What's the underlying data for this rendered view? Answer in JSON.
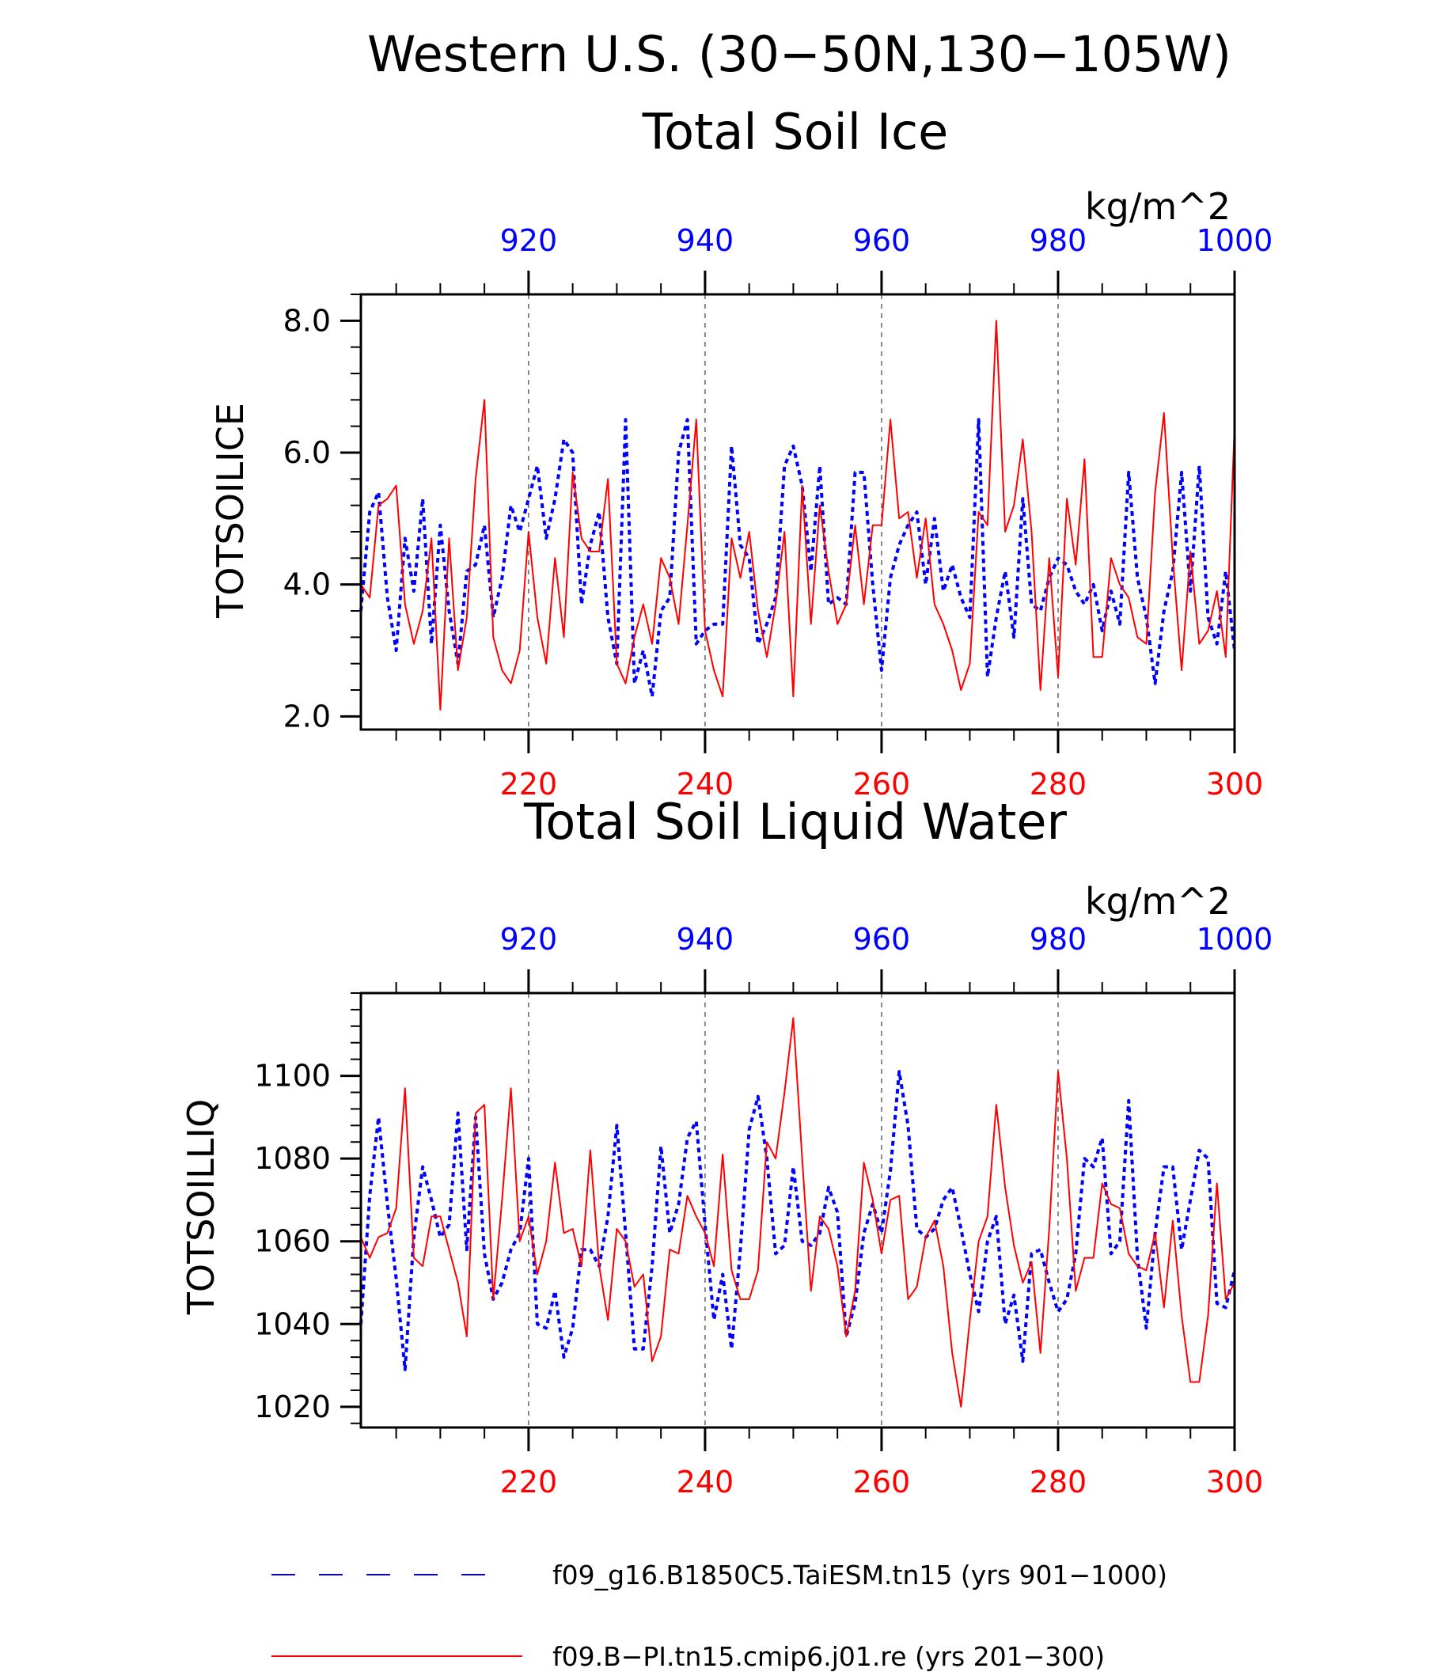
{
  "figure": {
    "title": "Western U.S. (30−50N,130−105W)",
    "colors": {
      "series_a": "#0000ff",
      "series_b": "#ff0000",
      "axis": "#000000",
      "grid": "#6e6e6e"
    }
  },
  "chart_data": [
    {
      "type": "line",
      "title": "Total Soil Ice",
      "ylabel": "TOTSOILICE",
      "unit_label": "kg/m^2",
      "ylim": [
        1.8,
        8.4
      ],
      "yticks": [
        "2.0",
        "4.0",
        "6.0",
        "8.0"
      ],
      "ytick_values": [
        2.0,
        4.0,
        6.0,
        8.0
      ],
      "y_minor_step": 0.4,
      "top_axis": {
        "lim": [
          901,
          1000
        ],
        "ticks": [
          "920",
          "940",
          "960",
          "980",
          "1000"
        ],
        "tick_values": [
          920,
          940,
          960,
          980,
          1000
        ]
      },
      "bottom_axis": {
        "lim": [
          201,
          300
        ],
        "ticks": [
          "220",
          "240",
          "260",
          "280",
          "300"
        ],
        "tick_values": [
          220,
          240,
          260,
          280,
          300
        ]
      },
      "grid": "vertical dashed",
      "series": [
        {
          "style": "dotted",
          "color": "#0000ff",
          "axis": "top",
          "x_start": 901,
          "values": [
            3.6,
            5.1,
            5.4,
            3.8,
            3.0,
            4.7,
            3.9,
            5.3,
            3.1,
            4.9,
            3.6,
            2.8,
            4.2,
            4.3,
            4.9,
            3.5,
            4.1,
            5.2,
            4.8,
            5.3,
            5.8,
            4.7,
            5.3,
            6.2,
            6.0,
            3.7,
            4.6,
            5.1,
            3.5,
            2.8,
            6.5,
            2.5,
            3.0,
            2.3,
            3.6,
            3.8,
            6.0,
            6.5,
            3.1,
            3.3,
            3.4,
            3.4,
            6.1,
            4.6,
            4.4,
            3.1,
            3.4,
            3.8,
            5.8,
            6.1,
            5.5,
            4.2,
            5.8,
            3.7,
            3.8,
            3.7,
            5.7,
            5.7,
            4.0,
            2.7,
            4.1,
            4.6,
            4.9,
            5.1,
            4.0,
            5.0,
            3.9,
            4.3,
            3.8,
            3.5,
            6.5,
            2.6,
            3.5,
            4.2,
            3.2,
            5.3,
            3.7,
            3.6,
            4.1,
            4.4,
            4.3,
            3.9,
            3.7,
            4.0,
            3.3,
            3.9,
            3.4,
            5.7,
            4.1,
            3.5,
            2.5,
            3.6,
            4.2,
            5.7,
            3.9,
            5.8,
            3.5,
            3.1,
            4.2,
            3.0
          ]
        },
        {
          "style": "solid",
          "color": "#ff0000",
          "axis": "bottom",
          "x_start": 201,
          "values": [
            4.0,
            3.8,
            5.2,
            5.3,
            5.5,
            3.7,
            3.1,
            3.6,
            4.7,
            2.1,
            4.7,
            2.7,
            3.5,
            5.6,
            6.8,
            3.2,
            2.7,
            2.5,
            3.0,
            4.8,
            3.5,
            2.8,
            4.4,
            3.2,
            5.7,
            4.7,
            4.5,
            4.5,
            5.6,
            2.8,
            2.5,
            3.2,
            3.7,
            3.1,
            4.4,
            4.1,
            3.4,
            4.9,
            6.5,
            3.3,
            2.7,
            2.3,
            4.7,
            4.1,
            4.8,
            3.6,
            2.9,
            3.7,
            4.8,
            2.3,
            5.5,
            3.4,
            5.2,
            4.2,
            3.4,
            3.7,
            4.9,
            3.7,
            4.9,
            4.9,
            6.5,
            5.0,
            5.1,
            4.1,
            5.0,
            3.7,
            3.4,
            3.0,
            2.4,
            2.8,
            5.1,
            4.9,
            8.0,
            4.8,
            5.2,
            6.2,
            4.8,
            2.4,
            4.4,
            2.6,
            5.3,
            4.3,
            5.9,
            2.9,
            2.9,
            4.4,
            4.0,
            3.8,
            3.2,
            3.1,
            5.4,
            6.6,
            4.4,
            2.7,
            4.5,
            3.1,
            3.3,
            3.9,
            2.9,
            6.4
          ]
        }
      ]
    },
    {
      "type": "line",
      "title": "Total Soil Liquid Water",
      "ylabel": "TOTSOILLIQ",
      "unit_label": "kg/m^2",
      "ylim": [
        1015,
        1120
      ],
      "yticks": [
        "1020",
        "1040",
        "1060",
        "1080",
        "1100"
      ],
      "ytick_values": [
        1020,
        1040,
        1060,
        1080,
        1100
      ],
      "y_minor_step": 4,
      "top_axis": {
        "lim": [
          901,
          1000
        ],
        "ticks": [
          "920",
          "940",
          "960",
          "980",
          "1000"
        ],
        "tick_values": [
          920,
          940,
          960,
          980,
          1000
        ]
      },
      "bottom_axis": {
        "lim": [
          201,
          300
        ],
        "ticks": [
          "220",
          "240",
          "260",
          "280",
          "300"
        ],
        "tick_values": [
          220,
          240,
          260,
          280,
          300
        ]
      },
      "grid": "vertical dashed",
      "series": [
        {
          "style": "dotted",
          "color": "#0000ff",
          "axis": "top",
          "x_start": 901,
          "values": [
            1040,
            1071,
            1090,
            1069,
            1051,
            1029,
            1061,
            1078,
            1070,
            1061,
            1064,
            1091,
            1058,
            1090,
            1057,
            1046,
            1050,
            1058,
            1062,
            1080,
            1040,
            1039,
            1048,
            1032,
            1039,
            1058,
            1058,
            1054,
            1066,
            1088,
            1062,
            1034,
            1034,
            1054,
            1083,
            1062,
            1069,
            1085,
            1089,
            1064,
            1041,
            1052,
            1034,
            1058,
            1087,
            1095,
            1080,
            1057,
            1059,
            1078,
            1060,
            1059,
            1062,
            1073,
            1067,
            1037,
            1045,
            1062,
            1069,
            1062,
            1077,
            1101,
            1088,
            1063,
            1061,
            1063,
            1070,
            1073,
            1063,
            1052,
            1043,
            1060,
            1066,
            1040,
            1047,
            1031,
            1057,
            1058,
            1050,
            1043,
            1046,
            1057,
            1080,
            1078,
            1085,
            1057,
            1060,
            1094,
            1056,
            1039,
            1062,
            1078,
            1078,
            1058,
            1070,
            1082,
            1080,
            1045,
            1044,
            1053
          ]
        },
        {
          "style": "solid",
          "color": "#ff0000",
          "axis": "bottom",
          "x_start": 201,
          "values": [
            1061,
            1056,
            1061,
            1062,
            1068,
            1097,
            1056,
            1054,
            1066,
            1066,
            1058,
            1050,
            1037,
            1091,
            1093,
            1046,
            1070,
            1097,
            1060,
            1066,
            1052,
            1060,
            1079,
            1062,
            1063,
            1054,
            1082,
            1054,
            1041,
            1063,
            1060,
            1049,
            1052,
            1031,
            1037,
            1058,
            1057,
            1071,
            1066,
            1062,
            1054,
            1081,
            1053,
            1046,
            1046,
            1053,
            1084,
            1080,
            1096,
            1114,
            1080,
            1048,
            1066,
            1063,
            1054,
            1037,
            1048,
            1079,
            1070,
            1057,
            1070,
            1071,
            1046,
            1049,
            1061,
            1065,
            1054,
            1033,
            1020,
            1041,
            1060,
            1066,
            1093,
            1073,
            1059,
            1050,
            1055,
            1033,
            1063,
            1101,
            1080,
            1048,
            1056,
            1056,
            1074,
            1069,
            1068,
            1057,
            1054,
            1053,
            1062,
            1044,
            1065,
            1042,
            1026,
            1026,
            1042,
            1074,
            1046,
            1050
          ]
        }
      ]
    }
  ],
  "legend": [
    {
      "label": "f09_g16.B1850C5.TaiESM.tn15 (yrs 901−1000)",
      "color": "#0000ff",
      "style": "dashed"
    },
    {
      "label": "f09.B−PI.tn15.cmip6.j01.re (yrs 201−300)",
      "color": "#ff0000",
      "style": "solid"
    }
  ]
}
